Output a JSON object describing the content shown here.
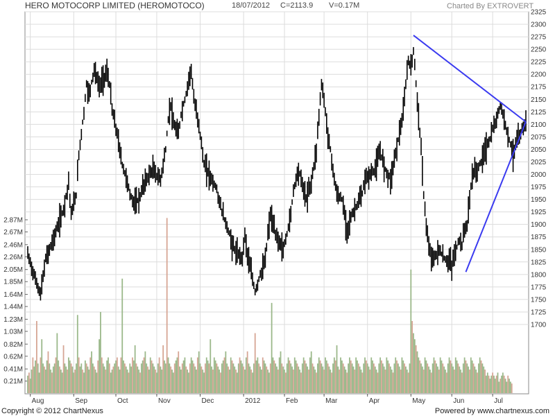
{
  "header": {
    "company": "HERO MOTOCORP LIMITED (HEROMOTOCO)",
    "date": "18/07/2012",
    "close": "C=2113.9",
    "volume": "V=0.17M",
    "charted_by": "Charted By EXTROVERT"
  },
  "footer": {
    "copyright": "Copyright © 2012 ChartNexus",
    "powered_by": "Powered by www.chartnexus.com"
  },
  "colors": {
    "price_bar": "#000000",
    "volume_up": "#9bb88a",
    "volume_down": "#d6a594",
    "trendline": "#3a3af0",
    "grid": "#dcdcdc",
    "plot_bg": "#ffffff"
  },
  "chart_data": {
    "type": "ohlc-bar",
    "price_axis": {
      "range": [
        1680,
        2325
      ],
      "tick_labels": [
        "2325",
        "2300",
        "2275",
        "2250",
        "2225",
        "2200",
        "2175",
        "2150",
        "2125",
        "2100",
        "2075",
        "2050",
        "2025",
        "2000",
        "1975",
        "1950",
        "1925",
        "1900",
        "1875",
        "1850",
        "1825",
        "1800",
        "1775",
        "1750",
        "1725",
        "1700"
      ]
    },
    "volume_axis": {
      "range_millions": [
        0,
        2.95
      ],
      "tick_labels": [
        "2.87M",
        "2.67M",
        "2.46M",
        "2.26M",
        "2.05M",
        "1.85M",
        "1.64M",
        "1.44M",
        "1.23M",
        "1.03M",
        "0.82M",
        "0.62M",
        "0.41M",
        "0.21M"
      ]
    },
    "x_axis": {
      "labels": [
        "Aug",
        "Sep",
        "Oct",
        "Nov",
        "Dec",
        "2012",
        "Feb",
        "Mar",
        "Apr",
        "May",
        "Jun",
        "Jul"
      ]
    },
    "price_path": [
      [
        0,
        1840
      ],
      [
        6,
        1790
      ],
      [
        10,
        1760
      ],
      [
        14,
        1830
      ],
      [
        20,
        1870
      ],
      [
        24,
        1900
      ],
      [
        28,
        1930
      ],
      [
        32,
        1985
      ],
      [
        34,
        1920
      ],
      [
        38,
        1960
      ],
      [
        40,
        2040
      ],
      [
        44,
        2125
      ],
      [
        46,
        2180
      ],
      [
        48,
        2160
      ],
      [
        52,
        2210
      ],
      [
        56,
        2175
      ],
      [
        60,
        2195
      ],
      [
        62,
        2205
      ],
      [
        64,
        2180
      ],
      [
        66,
        2130
      ],
      [
        70,
        2080
      ],
      [
        74,
        2020
      ],
      [
        78,
        1985
      ],
      [
        80,
        1960
      ],
      [
        84,
        1940
      ],
      [
        88,
        1955
      ],
      [
        90,
        1975
      ],
      [
        94,
        1995
      ],
      [
        98,
        2010
      ],
      [
        100,
        2000
      ],
      [
        104,
        1990
      ],
      [
        108,
        2050
      ],
      [
        110,
        2110
      ],
      [
        112,
        2140
      ],
      [
        114,
        2100
      ],
      [
        118,
        2080
      ],
      [
        120,
        2120
      ],
      [
        124,
        2160
      ],
      [
        126,
        2190
      ],
      [
        128,
        2210
      ],
      [
        130,
        2150
      ],
      [
        134,
        2100
      ],
      [
        138,
        2020
      ],
      [
        142,
        2000
      ],
      [
        144,
        1990
      ],
      [
        148,
        1970
      ],
      [
        150,
        1945
      ],
      [
        154,
        1910
      ],
      [
        158,
        1880
      ],
      [
        160,
        1860
      ],
      [
        164,
        1840
      ],
      [
        168,
        1835
      ],
      [
        170,
        1880
      ],
      [
        172,
        1840
      ],
      [
        176,
        1790
      ],
      [
        178,
        1765
      ],
      [
        182,
        1800
      ],
      [
        184,
        1810
      ],
      [
        186,
        1830
      ],
      [
        188,
        1880
      ],
      [
        190,
        1920
      ],
      [
        194,
        1880
      ],
      [
        198,
        1860
      ],
      [
        200,
        1850
      ],
      [
        202,
        1870
      ],
      [
        206,
        1920
      ],
      [
        208,
        1970
      ],
      [
        212,
        2010
      ],
      [
        214,
        1990
      ],
      [
        218,
        1950
      ],
      [
        222,
        1985
      ],
      [
        226,
        2050
      ],
      [
        228,
        2120
      ],
      [
        230,
        2180
      ],
      [
        232,
        2150
      ],
      [
        234,
        2100
      ],
      [
        238,
        2030
      ],
      [
        240,
        1990
      ],
      [
        242,
        1960
      ],
      [
        246,
        1950
      ],
      [
        250,
        1890
      ],
      [
        254,
        1920
      ],
      [
        258,
        1940
      ],
      [
        262,
        1960
      ],
      [
        264,
        1990
      ],
      [
        268,
        2000
      ],
      [
        272,
        2010
      ],
      [
        274,
        2030
      ],
      [
        276,
        2045
      ],
      [
        280,
        2010
      ],
      [
        284,
        1990
      ],
      [
        286,
        2015
      ],
      [
        290,
        2070
      ],
      [
        294,
        2120
      ],
      [
        296,
        2180
      ],
      [
        298,
        2230
      ],
      [
        300,
        2210
      ],
      [
        302,
        2250
      ],
      [
        304,
        2180
      ],
      [
        306,
        2120
      ],
      [
        308,
        2050
      ],
      [
        310,
        1960
      ],
      [
        312,
        1900
      ],
      [
        314,
        1850
      ],
      [
        318,
        1830
      ],
      [
        322,
        1850
      ],
      [
        324,
        1840
      ],
      [
        328,
        1825
      ],
      [
        330,
        1830
      ],
      [
        332,
        1815
      ],
      [
        334,
        1840
      ],
      [
        336,
        1855
      ],
      [
        338,
        1870
      ],
      [
        340,
        1860
      ],
      [
        342,
        1890
      ],
      [
        344,
        1900
      ],
      [
        348,
        2000
      ],
      [
        352,
        2010
      ],
      [
        354,
        2020
      ],
      [
        356,
        2030
      ],
      [
        358,
        2050
      ],
      [
        360,
        2060
      ],
      [
        362,
        2070
      ],
      [
        364,
        2090
      ],
      [
        366,
        2100
      ],
      [
        368,
        2120
      ],
      [
        370,
        2140
      ],
      [
        372,
        2120
      ],
      [
        374,
        2100
      ],
      [
        376,
        2080
      ],
      [
        378,
        2060
      ],
      [
        380,
        2040
      ],
      [
        382,
        2060
      ],
      [
        384,
        2070
      ],
      [
        386,
        2080
      ],
      [
        388,
        2095
      ],
      [
        390,
        2110
      ]
    ],
    "volume_millions": [
      0.3,
      0.35,
      0.25,
      0.4,
      0.6,
      0.45,
      0.55,
      1.2,
      0.5,
      0.35,
      0.6,
      0.9,
      0.5,
      0.45,
      0.4,
      0.55,
      0.7,
      0.5,
      0.4,
      0.35,
      0.45,
      0.5,
      0.6,
      1.0,
      0.55,
      0.45,
      0.4,
      0.35,
      0.8,
      0.5,
      0.45,
      0.4,
      0.6,
      0.55,
      0.5,
      0.45,
      0.35,
      0.4,
      0.5,
      1.3,
      0.6,
      0.45,
      0.5,
      0.4,
      0.35,
      0.55,
      0.5,
      0.45,
      0.4,
      0.6,
      0.7,
      0.5,
      0.45,
      0.4,
      0.35,
      0.55,
      0.9,
      1.35,
      0.6,
      0.5,
      0.45,
      0.4,
      0.55,
      0.6,
      0.5,
      0.35,
      0.4,
      0.45,
      0.5,
      0.55,
      0.6,
      0.45,
      0.4,
      0.6,
      1.9,
      0.55,
      0.5,
      0.45,
      0.4,
      0.35,
      0.5,
      0.45,
      0.6,
      0.55,
      0.8,
      0.5,
      0.45,
      0.4,
      0.35,
      0.5,
      0.55,
      0.6,
      0.7,
      0.5,
      0.45,
      0.4,
      0.6,
      0.55,
      0.5,
      0.45,
      0.4,
      0.35,
      0.5,
      0.6,
      0.45,
      0.4,
      0.8,
      0.55,
      0.5,
      2.9,
      0.6,
      0.5,
      0.45,
      0.4,
      0.35,
      0.5,
      0.55,
      0.6,
      0.7,
      0.45,
      0.4,
      0.5,
      0.55,
      0.6,
      0.45,
      0.4,
      0.35,
      0.5,
      0.6,
      0.55,
      0.5,
      0.45,
      0.4,
      0.6,
      0.7,
      0.5,
      0.45,
      0.4,
      0.35,
      0.5,
      0.6,
      0.55,
      0.5,
      0.9,
      0.45,
      0.4,
      0.6,
      0.55,
      0.5,
      0.45,
      0.4,
      0.35,
      0.5,
      0.55,
      0.6,
      0.7,
      0.5,
      0.45,
      0.4,
      0.6,
      0.55,
      0.5,
      0.45,
      0.4,
      0.35,
      0.5,
      0.6,
      0.55,
      0.5,
      0.45,
      0.4,
      0.6,
      0.7,
      0.5,
      0.45,
      0.4,
      0.35,
      0.5,
      1.0,
      0.55,
      0.6,
      0.5,
      0.45,
      0.4,
      0.6,
      0.55,
      0.5,
      0.45,
      0.4,
      0.35,
      0.5,
      1.5,
      0.6,
      0.55,
      0.5,
      0.45,
      0.4,
      0.6,
      0.7,
      0.5,
      0.45,
      0.4,
      0.35,
      0.5,
      0.6,
      0.55,
      0.5,
      0.45,
      0.4,
      0.6,
      0.55,
      0.5,
      0.45,
      0.4,
      0.35,
      0.5,
      0.6,
      0.55,
      0.5,
      0.45,
      0.4,
      0.6,
      0.7,
      0.5,
      0.45,
      0.4,
      0.35,
      0.5,
      0.6,
      0.55,
      0.5,
      0.45,
      0.4,
      0.6,
      0.55,
      0.5,
      0.45,
      0.4,
      0.35,
      0.5,
      0.6,
      0.55,
      0.8,
      0.45,
      0.4,
      0.6,
      0.55,
      0.5,
      0.45,
      0.4,
      0.35,
      0.5,
      0.6,
      0.55,
      0.5,
      0.45,
      0.4,
      0.6,
      0.55,
      0.5,
      0.45,
      0.4,
      0.35,
      0.5,
      0.6,
      0.55,
      0.5,
      0.45,
      0.4,
      0.6,
      0.55,
      0.5,
      0.45,
      0.4,
      0.35,
      0.5,
      0.6,
      0.55,
      0.5,
      0.45,
      0.4,
      0.6,
      0.55,
      0.5,
      0.45,
      0.4,
      0.35,
      0.5,
      0.6,
      0.55,
      0.5,
      0.45,
      0.4,
      0.6,
      0.55,
      0.5,
      0.45,
      0.4,
      0.35,
      0.5,
      2.05,
      1.2,
      1.0,
      0.9,
      0.8,
      0.7,
      0.6,
      0.55,
      0.5,
      0.45,
      0.4,
      0.6,
      0.55,
      0.5,
      0.45,
      0.4,
      0.35,
      0.5,
      0.6,
      0.55,
      0.5,
      0.45,
      0.4,
      0.6,
      0.55,
      0.5,
      0.45,
      0.4,
      0.35,
      0.5,
      0.6,
      0.55,
      0.5,
      0.45,
      0.4,
      0.6,
      0.55,
      0.5,
      0.45,
      0.4,
      0.35,
      0.5,
      0.6,
      0.55,
      0.5,
      0.45,
      0.4,
      0.6,
      0.55,
      0.5,
      0.45,
      0.4,
      0.35,
      0.5,
      0.6,
      0.55,
      0.5,
      0.45,
      0.4,
      0.3,
      0.35,
      0.3,
      0.25,
      0.3,
      0.35,
      0.3,
      0.25,
      0.3,
      0.35,
      0.2,
      0.25,
      0.3,
      0.35,
      0.3,
      0.25,
      0.2,
      0.3,
      0.25,
      0.2,
      0.17
    ],
    "trendlines": [
      {
        "from": [
          302,
          2278
        ],
        "to": [
          390,
          2105
        ]
      },
      {
        "from": [
          343,
          1805
        ],
        "to": [
          390,
          2105
        ]
      }
    ]
  }
}
